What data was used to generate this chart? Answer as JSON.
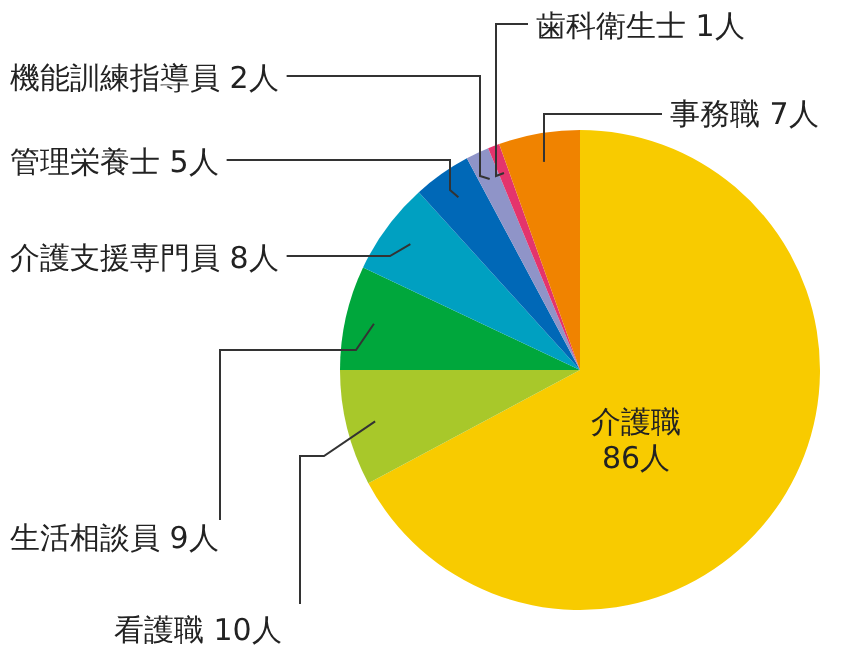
{
  "chart_data": {
    "type": "pie",
    "categories": [
      "介護職",
      "看護職",
      "生活相談員",
      "介護支援専門員",
      "管理栄養士",
      "機能訓練指導員",
      "歯科衛生士",
      "事務職"
    ],
    "values": [
      86,
      10,
      9,
      8,
      5,
      2,
      1,
      7
    ],
    "value_labels": [
      "86人",
      "10人",
      "9人",
      "8人",
      "5人",
      "2人",
      "1人",
      "7人"
    ],
    "colors": [
      "#f8cb00",
      "#a8c82a",
      "#00a73c",
      "#00a0c1",
      "#0068b7",
      "#8f94c8",
      "#e4346c",
      "#f08300"
    ]
  }
}
